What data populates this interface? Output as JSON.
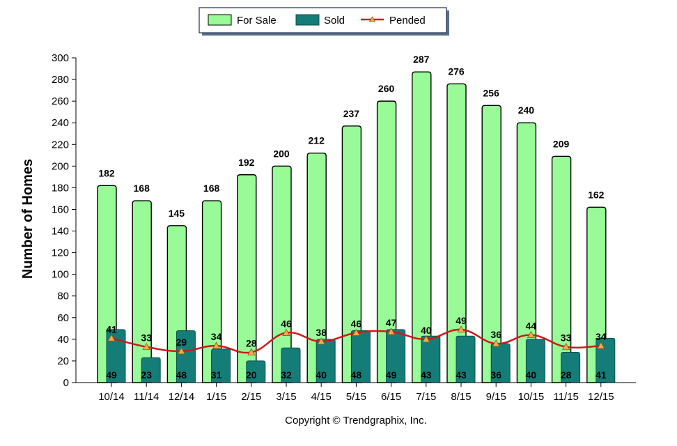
{
  "chart_data": {
    "type": "bar",
    "categories": [
      "10/14",
      "11/14",
      "12/14",
      "1/15",
      "2/15",
      "3/15",
      "4/15",
      "5/15",
      "6/15",
      "7/15",
      "8/15",
      "9/15",
      "10/15",
      "11/15",
      "12/15"
    ],
    "series": [
      {
        "name": "For Sale",
        "type": "bar",
        "color": "#98fb98",
        "values": [
          182,
          168,
          145,
          168,
          192,
          200,
          212,
          237,
          260,
          287,
          276,
          256,
          240,
          209,
          162
        ]
      },
      {
        "name": "Sold",
        "type": "bar",
        "color": "#147d78",
        "values": [
          49,
          23,
          48,
          31,
          20,
          32,
          40,
          48,
          49,
          43,
          43,
          36,
          40,
          28,
          41
        ]
      },
      {
        "name": "Pended",
        "type": "line",
        "color": "#cc1a1a",
        "marker_color": "#f5a94a",
        "values": [
          41,
          33,
          29,
          34,
          28,
          46,
          38,
          46,
          47,
          40,
          49,
          36,
          44,
          33,
          34
        ]
      }
    ],
    "ylabel": "Number of Homes",
    "xlabel": "",
    "ylim": [
      0,
      300
    ],
    "yticks": [
      0,
      20,
      40,
      60,
      80,
      100,
      120,
      140,
      160,
      180,
      200,
      220,
      240,
      260,
      280,
      300
    ],
    "legend_position": "top-center",
    "grid": false
  },
  "footer": {
    "copyright": "Copyright © Trendgraphix, Inc."
  }
}
